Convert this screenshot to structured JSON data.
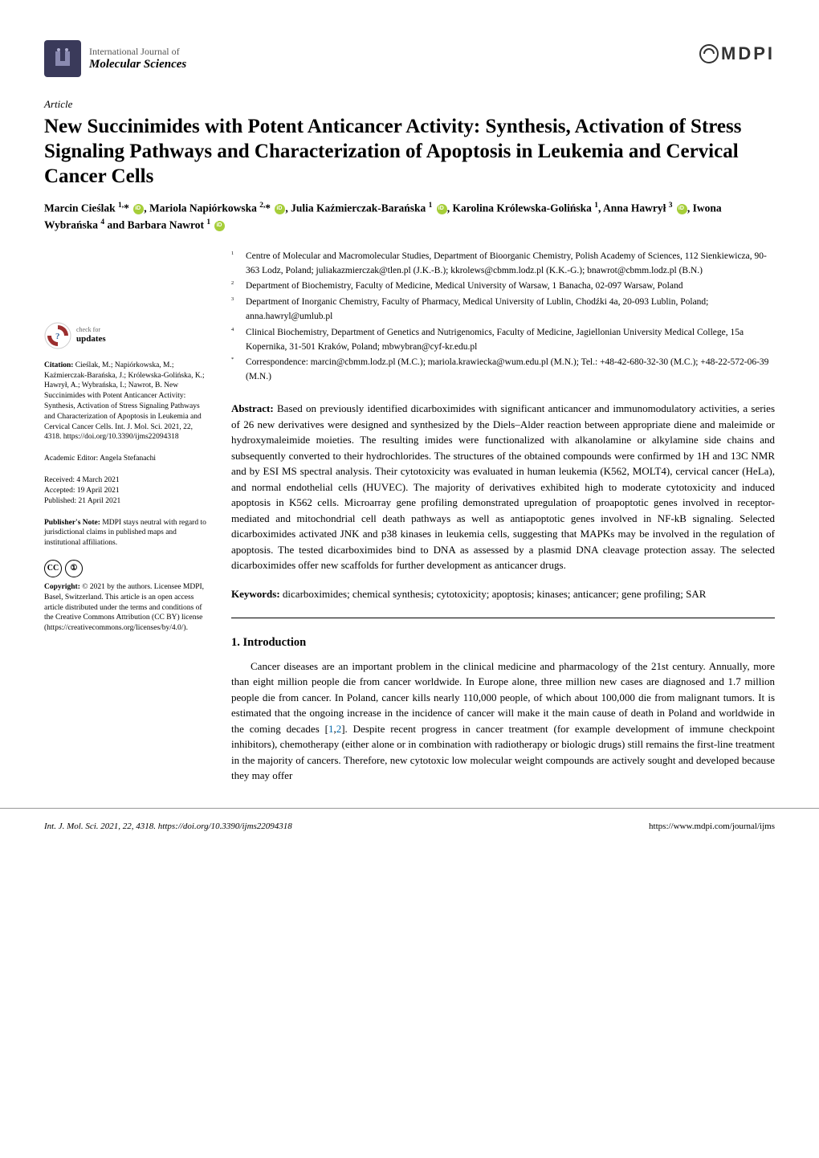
{
  "journal": {
    "top_line": "International Journal of",
    "name": "Molecular Sciences"
  },
  "publisher_logo_text": "MDPI",
  "article_type": "Article",
  "title": "New Succinimides with Potent Anticancer Activity: Synthesis, Activation of Stress Signaling Pathways and Characterization of Apoptosis in Leukemia and Cervical Cancer Cells",
  "authors_html": "Marcin Cieślak <sup>1,</sup>* <span class='orcid'></span>, Mariola Napiórkowska <sup>2,</sup>* <span class='orcid'></span>, Julia Kaźmierczak-Barańska <sup>1</sup> <span class='orcid'></span>, Karolina Królewska-Golińska <sup>1</sup>, Anna Hawrył <sup>3</sup> <span class='orcid'></span>, Iwona Wybrańska <sup>4</sup> and Barbara Nawrot <sup>1</sup> <span class='orcid'></span>",
  "affiliations": [
    {
      "num": "1",
      "text": "Centre of Molecular and Macromolecular Studies, Department of Bioorganic Chemistry, Polish Academy of Sciences, 112 Sienkiewicza, 90-363 Lodz, Poland; juliakazmierczak@tlen.pl (J.K.-B.); kkrolews@cbmm.lodz.pl (K.K.-G.); bnawrot@cbmm.lodz.pl (B.N.)"
    },
    {
      "num": "2",
      "text": "Department of Biochemistry, Faculty of Medicine, Medical University of Warsaw, 1 Banacha, 02-097 Warsaw, Poland"
    },
    {
      "num": "3",
      "text": "Department of Inorganic Chemistry, Faculty of Pharmacy, Medical University of Lublin, Chodźki 4a, 20-093 Lublin, Poland; anna.hawryl@umlub.pl"
    },
    {
      "num": "4",
      "text": "Clinical Biochemistry, Department of Genetics and Nutrigenomics, Faculty of Medicine, Jagiellonian University Medical College, 15a Kopernika, 31-501 Kraków, Poland; mbwybran@cyf-kr.edu.pl"
    },
    {
      "num": "*",
      "text": "Correspondence: marcin@cbmm.lodz.pl (M.C.); mariola.krawiecka@wum.edu.pl (M.N.); Tel.: +48-42-680-32-30 (M.C.); +48-22-572-06-39 (M.N.)"
    }
  ],
  "check_updates": {
    "line1": "check for",
    "line2": "updates"
  },
  "citation": {
    "label": "Citation:",
    "text": " Cieślak, M.; Napiórkowska, M.; Kaźmierczak-Barańska, J.; Królewska-Golińska, K.; Hawrył, A.; Wybrańska, I.; Nawrot, B. New Succinimides with Potent Anticancer Activity: Synthesis, Activation of Stress Signaling Pathways and Characterization of Apoptosis in Leukemia and Cervical Cancer Cells. Int. J. Mol. Sci. 2021, 22, 4318. https://doi.org/10.3390/ijms22094318"
  },
  "editor": {
    "label": "Academic Editor: ",
    "name": "Angela Stefanachi"
  },
  "dates": {
    "received": "Received: 4 March 2021",
    "accepted": "Accepted: 19 April 2021",
    "published": "Published: 21 April 2021"
  },
  "publishers_note": {
    "label": "Publisher's Note:",
    "text": " MDPI stays neutral with regard to jurisdictional claims in published maps and institutional affiliations."
  },
  "copyright": {
    "label": "Copyright:",
    "text": " © 2021 by the authors. Licensee MDPI, Basel, Switzerland. This article is an open access article distributed under the terms and conditions of the Creative Commons Attribution (CC BY) license (https://creativecommons.org/licenses/by/4.0/)."
  },
  "abstract": {
    "label": "Abstract:",
    "text": " Based on previously identified dicarboximides with significant anticancer and immunomodulatory activities, a series of 26 new derivatives were designed and synthesized by the Diels–Alder reaction between appropriate diene and maleimide or hydroxymaleimide moieties. The resulting imides were functionalized with alkanolamine or alkylamine side chains and subsequently converted to their hydrochlorides. The structures of the obtained compounds were confirmed by 1H and 13C NMR and by ESI MS spectral analysis. Their cytotoxicity was evaluated in human leukemia (K562, MOLT4), cervical cancer (HeLa), and normal endothelial cells (HUVEC). The majority of derivatives exhibited high to moderate cytotoxicity and induced apoptosis in K562 cells. Microarray gene profiling demonstrated upregulation of proapoptotic genes involved in receptor-mediated and mitochondrial cell death pathways as well as antiapoptotic genes involved in NF-kB signaling. Selected dicarboximides activated JNK and p38 kinases in leukemia cells, suggesting that MAPKs may be involved in the regulation of apoptosis. The tested dicarboximides bind to DNA as assessed by a plasmid DNA cleavage protection assay. The selected dicarboximides offer new scaffolds for further development as anticancer drugs."
  },
  "keywords": {
    "label": "Keywords:",
    "text": " dicarboximides; chemical synthesis; cytotoxicity; apoptosis; kinases; anticancer; gene profiling; SAR"
  },
  "section1": {
    "heading": "1. Introduction",
    "body": "Cancer diseases are an important problem in the clinical medicine and pharmacology of the 21st century. Annually, more than eight million people die from cancer worldwide. In Europe alone, three million new cases are diagnosed and 1.7 million people die from cancer. In Poland, cancer kills nearly 110,000 people, of which about 100,000 die from malignant tumors. It is estimated that the ongoing increase in the incidence of cancer will make it the main cause of death in Poland and worldwide in the coming decades [1,2]. Despite recent progress in cancer treatment (for example development of immune checkpoint inhibitors), chemotherapy (either alone or in combination with radiotherapy or biologic drugs) still remains the first-line treatment in the majority of cancers. Therefore, new cytotoxic low molecular weight compounds are actively sought and developed because they may offer"
  },
  "footer": {
    "left": "Int. J. Mol. Sci. 2021, 22, 4318. https://doi.org/10.3390/ijms22094318",
    "right": "https://www.mdpi.com/journal/ijms"
  },
  "colors": {
    "text": "#000000",
    "link": "#0066aa",
    "logo_bg": "#3a3a5a",
    "orcid": "#a6ce39",
    "check_arrow": "#9b2e2e",
    "check_q": "#3a6aa0"
  }
}
